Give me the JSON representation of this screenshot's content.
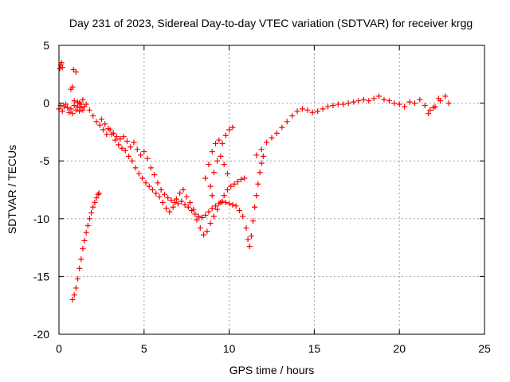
{
  "chart_data": {
    "type": "scatter",
    "title": "Day 231 of 2023, Sidereal Day-to-day VTEC variation (SDTVAR) for receiver krgg",
    "xlabel": "GPS time / hours",
    "ylabel": "SDTVAR / TECUs",
    "xlim": [
      0,
      25
    ],
    "ylim": [
      -20,
      5
    ],
    "xticks": [
      0,
      5,
      10,
      15,
      20,
      25
    ],
    "yticks": [
      5,
      0,
      -5,
      -10,
      -15,
      -20
    ],
    "xtick_labels": [
      "0",
      "5",
      "10",
      "15",
      "20",
      "25"
    ],
    "ytick_labels": [
      "5",
      "0",
      "-5",
      "-10",
      "-15",
      "-20"
    ],
    "grid": true,
    "marker": "+",
    "color": "#ff0000",
    "series": [
      {
        "name": "early-cluster",
        "points": [
          [
            0.05,
            3.0
          ],
          [
            0.1,
            3.3
          ],
          [
            0.15,
            3.5
          ],
          [
            0.2,
            3.1
          ],
          [
            0.85,
            2.9
          ],
          [
            1.0,
            2.7
          ],
          [
            0.0,
            -0.5
          ],
          [
            0.1,
            -0.2
          ],
          [
            0.2,
            -0.7
          ],
          [
            0.3,
            -0.3
          ],
          [
            0.4,
            -0.1
          ],
          [
            0.5,
            -0.4
          ],
          [
            0.6,
            -0.8
          ],
          [
            0.7,
            -0.5
          ],
          [
            0.8,
            -0.9
          ],
          [
            0.9,
            -0.2
          ],
          [
            1.0,
            -0.6
          ],
          [
            1.1,
            -0.3
          ],
          [
            1.2,
            -0.7
          ],
          [
            1.3,
            -0.4
          ],
          [
            1.4,
            -0.6
          ],
          [
            1.5,
            -0.3
          ],
          [
            0.7,
            1.2
          ],
          [
            0.8,
            1.4
          ],
          [
            0.9,
            0.2
          ],
          [
            1.1,
            0.1
          ],
          [
            1.2,
            0.0
          ],
          [
            1.3,
            -0.1
          ]
        ]
      },
      {
        "name": "descending-branch",
        "points": [
          [
            1.4,
            0.3
          ],
          [
            1.6,
            -0.1
          ],
          [
            1.8,
            -0.6
          ],
          [
            2.0,
            -1.1
          ],
          [
            2.2,
            -1.6
          ],
          [
            2.4,
            -1.9
          ],
          [
            2.6,
            -2.3
          ],
          [
            2.8,
            -2.7
          ],
          [
            3.0,
            -2.3
          ],
          [
            3.2,
            -2.6
          ],
          [
            3.4,
            -2.9
          ],
          [
            3.6,
            -3.1
          ],
          [
            3.8,
            -2.9
          ],
          [
            4.0,
            -3.3
          ],
          [
            4.2,
            -3.8
          ],
          [
            4.4,
            -3.4
          ],
          [
            4.6,
            -4.0
          ],
          [
            4.8,
            -4.5
          ],
          [
            5.0,
            -4.2
          ],
          [
            5.2,
            -4.8
          ],
          [
            5.4,
            -5.6
          ],
          [
            5.6,
            -6.2
          ],
          [
            5.8,
            -6.9
          ],
          [
            6.0,
            -7.5
          ],
          [
            6.2,
            -7.9
          ],
          [
            6.4,
            -8.2
          ],
          [
            6.6,
            -8.4
          ],
          [
            6.8,
            -8.6
          ],
          [
            7.0,
            -8.7
          ],
          [
            7.2,
            -8.5
          ],
          [
            7.4,
            -8.8
          ],
          [
            7.6,
            -9.0
          ],
          [
            7.8,
            -9.3
          ],
          [
            8.0,
            -9.6
          ],
          [
            8.2,
            -9.8
          ],
          [
            8.4,
            -9.9
          ],
          [
            8.6,
            -9.7
          ],
          [
            8.8,
            -9.4
          ],
          [
            9.0,
            -9.1
          ],
          [
            9.2,
            -8.9
          ],
          [
            9.4,
            -8.7
          ],
          [
            9.6,
            -8.5
          ],
          [
            9.8,
            -8.6
          ],
          [
            10.0,
            -8.7
          ],
          [
            10.2,
            -8.8
          ],
          [
            10.4,
            -8.9
          ],
          [
            10.6,
            -9.3
          ],
          [
            10.8,
            -9.8
          ],
          [
            11.0,
            -10.8
          ],
          [
            11.1,
            -11.8
          ],
          [
            11.2,
            -12.4
          ],
          [
            11.3,
            -11.5
          ],
          [
            11.4,
            -10.2
          ],
          [
            11.5,
            -9.0
          ],
          [
            11.6,
            -8.0
          ],
          [
            11.7,
            -7.0
          ],
          [
            11.8,
            -6.0
          ],
          [
            11.9,
            -5.2
          ],
          [
            12.0,
            -4.6
          ]
        ]
      },
      {
        "name": "second-branch",
        "points": [
          [
            2.5,
            -1.4
          ],
          [
            2.7,
            -1.8
          ],
          [
            2.9,
            -2.2
          ],
          [
            3.1,
            -2.7
          ],
          [
            3.3,
            -3.2
          ],
          [
            3.5,
            -3.6
          ],
          [
            3.7,
            -3.9
          ],
          [
            3.9,
            -4.1
          ],
          [
            4.1,
            -4.6
          ],
          [
            4.3,
            -5.0
          ],
          [
            4.5,
            -5.6
          ],
          [
            4.7,
            -6.1
          ],
          [
            4.9,
            -6.5
          ],
          [
            5.1,
            -6.9
          ],
          [
            5.3,
            -7.2
          ],
          [
            5.5,
            -7.5
          ],
          [
            5.7,
            -7.8
          ],
          [
            5.9,
            -8.1
          ],
          [
            6.1,
            -8.6
          ],
          [
            6.3,
            -9.1
          ],
          [
            6.5,
            -9.4
          ],
          [
            6.7,
            -9.0
          ],
          [
            6.9,
            -8.3
          ],
          [
            7.1,
            -7.8
          ],
          [
            7.3,
            -7.5
          ],
          [
            7.5,
            -8.1
          ],
          [
            7.7,
            -8.6
          ],
          [
            7.9,
            -9.2
          ],
          [
            8.1,
            -10.1
          ],
          [
            8.3,
            -10.8
          ],
          [
            8.5,
            -11.4
          ],
          [
            8.7,
            -11.1
          ],
          [
            8.9,
            -10.4
          ],
          [
            9.1,
            -9.8
          ],
          [
            9.3,
            -9.2
          ],
          [
            9.5,
            -8.6
          ],
          [
            9.7,
            -8.0
          ],
          [
            9.9,
            -7.5
          ],
          [
            10.1,
            -7.2
          ],
          [
            10.3,
            -7.0
          ],
          [
            10.5,
            -6.8
          ],
          [
            10.7,
            -6.6
          ],
          [
            10.9,
            -6.5
          ]
        ]
      },
      {
        "name": "upper-lobe-near-10h",
        "points": [
          [
            8.6,
            -6.5
          ],
          [
            8.8,
            -5.3
          ],
          [
            9.0,
            -4.2
          ],
          [
            9.2,
            -3.5
          ],
          [
            9.4,
            -3.2
          ],
          [
            9.6,
            -3.5
          ],
          [
            9.8,
            -2.8
          ],
          [
            10.0,
            -2.3
          ],
          [
            10.2,
            -2.1
          ],
          [
            9.1,
            -6.0
          ],
          [
            9.3,
            -5.0
          ],
          [
            9.5,
            -4.6
          ],
          [
            9.7,
            -5.3
          ],
          [
            9.9,
            -6.1
          ],
          [
            8.9,
            -7.2
          ],
          [
            9.0,
            -8.0
          ]
        ]
      },
      {
        "name": "right-side",
        "points": [
          [
            11.6,
            -4.5
          ],
          [
            11.9,
            -4.0
          ],
          [
            12.2,
            -3.4
          ],
          [
            12.5,
            -3.0
          ],
          [
            12.8,
            -2.6
          ],
          [
            13.1,
            -2.1
          ],
          [
            13.4,
            -1.6
          ],
          [
            13.7,
            -1.1
          ],
          [
            14.0,
            -0.7
          ],
          [
            14.3,
            -0.5
          ],
          [
            14.6,
            -0.6
          ],
          [
            14.9,
            -0.8
          ],
          [
            15.2,
            -0.7
          ],
          [
            15.5,
            -0.5
          ],
          [
            15.8,
            -0.3
          ],
          [
            16.1,
            -0.2
          ],
          [
            16.4,
            -0.1
          ],
          [
            16.7,
            -0.1
          ],
          [
            17.0,
            0.0
          ],
          [
            17.3,
            0.1
          ],
          [
            17.6,
            0.2
          ],
          [
            17.9,
            0.3
          ],
          [
            18.2,
            0.2
          ],
          [
            18.5,
            0.4
          ],
          [
            18.8,
            0.6
          ],
          [
            19.1,
            0.3
          ],
          [
            19.4,
            0.2
          ],
          [
            19.7,
            0.0
          ],
          [
            20.0,
            -0.1
          ],
          [
            20.3,
            -0.3
          ],
          [
            20.6,
            0.1
          ],
          [
            20.9,
            0.0
          ],
          [
            21.2,
            0.3
          ],
          [
            21.5,
            -0.2
          ],
          [
            21.8,
            -0.6
          ],
          [
            22.1,
            -0.3
          ],
          [
            22.4,
            0.2
          ],
          [
            22.7,
            0.6
          ],
          [
            22.9,
            0.0
          ],
          [
            21.7,
            -0.9
          ],
          [
            22.0,
            -0.4
          ],
          [
            22.3,
            0.4
          ]
        ]
      },
      {
        "name": "steep-rise",
        "points": [
          [
            0.8,
            -17.0
          ],
          [
            0.9,
            -16.6
          ],
          [
            1.0,
            -16.0
          ],
          [
            1.1,
            -15.2
          ],
          [
            1.2,
            -14.3
          ],
          [
            1.3,
            -13.5
          ],
          [
            1.4,
            -12.6
          ],
          [
            1.5,
            -11.9
          ],
          [
            1.6,
            -11.2
          ],
          [
            1.7,
            -10.6
          ],
          [
            1.8,
            -10.0
          ],
          [
            1.9,
            -9.5
          ],
          [
            2.0,
            -9.0
          ],
          [
            2.1,
            -8.6
          ],
          [
            2.2,
            -8.2
          ],
          [
            2.3,
            -7.9
          ],
          [
            2.35,
            -7.8
          ]
        ]
      }
    ]
  }
}
